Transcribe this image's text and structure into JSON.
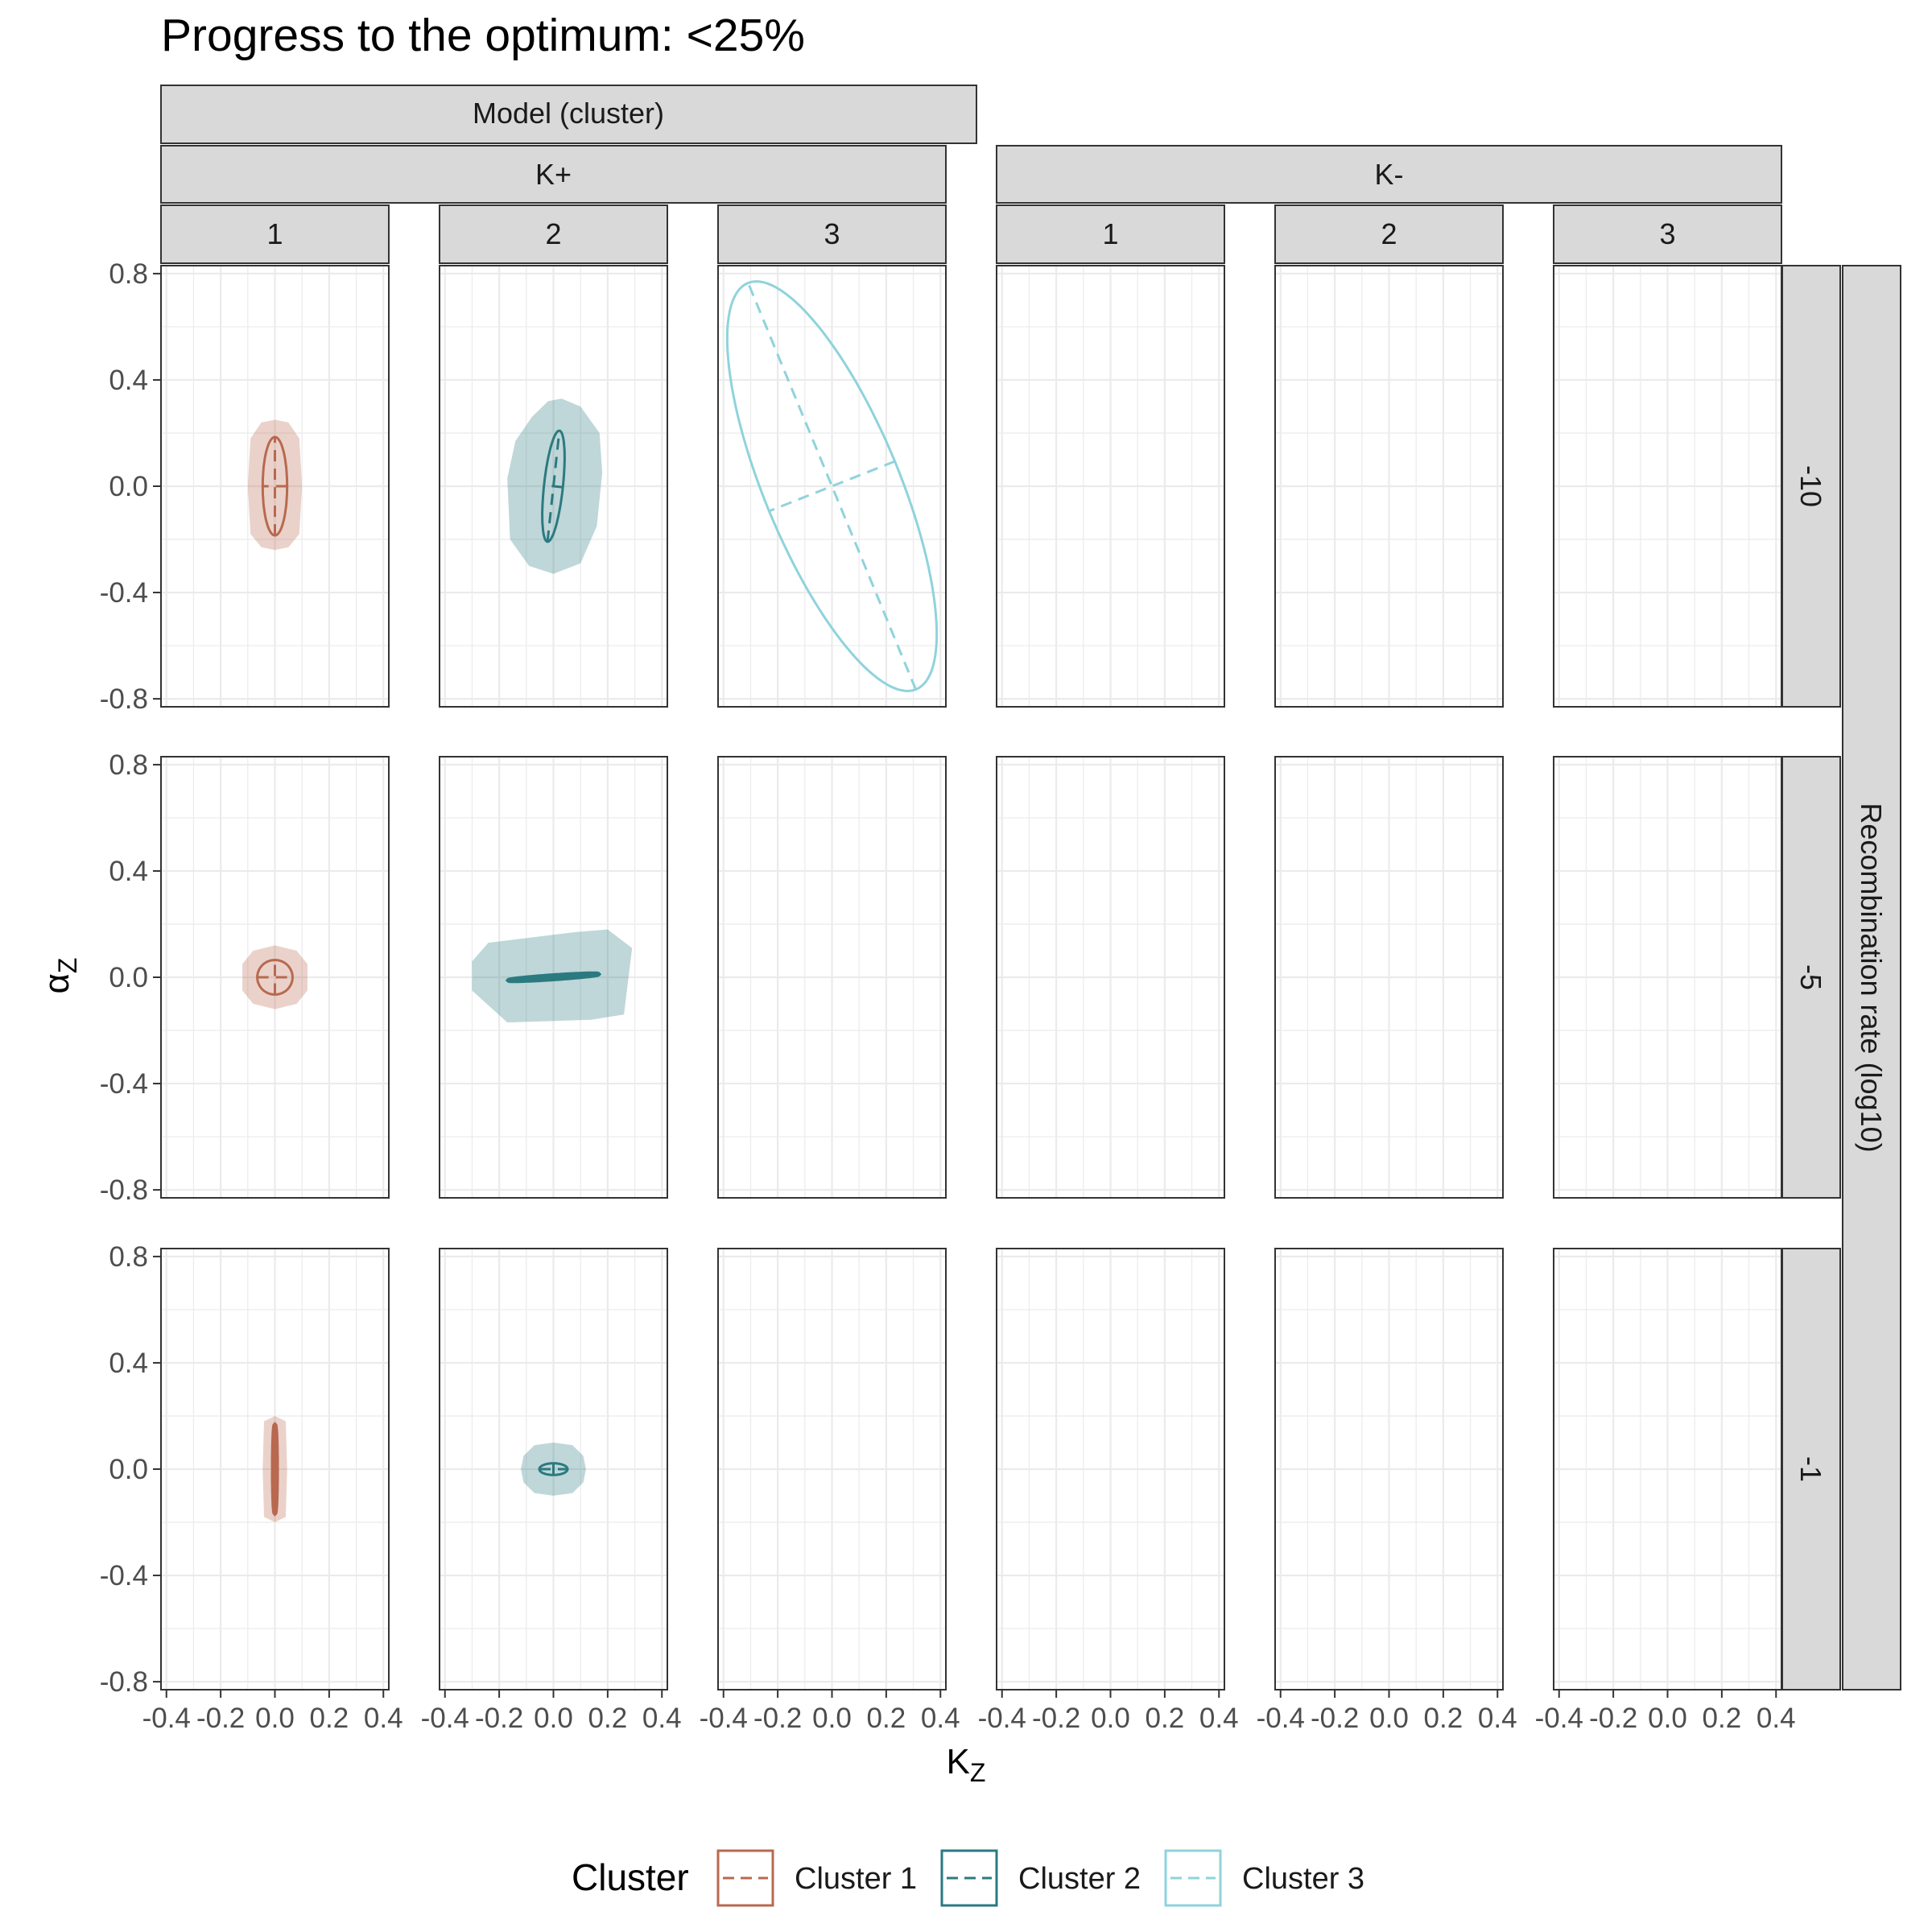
{
  "chart_data": {
    "type": "faceted-ellipse",
    "title": "Progress to the optimum: <25%",
    "xlabel": "K",
    "xlabel_sub": "Z",
    "ylabel": "α",
    "ylabel_sub": "Z",
    "xlim": [
      -0.42,
      0.42
    ],
    "ylim": [
      -0.83,
      0.83
    ],
    "x_ticks": [
      -0.4,
      -0.2,
      0.0,
      0.2,
      0.4
    ],
    "x_tick_labels": [
      "-0.4",
      "-0.2",
      "0.0",
      "0.2",
      "0.4"
    ],
    "y_ticks": [
      -0.8,
      -0.4,
      0.0,
      0.4,
      0.8
    ],
    "y_tick_labels": [
      "-0.8",
      "-0.4",
      "0.0",
      "0.4",
      "0.8"
    ],
    "grid": true,
    "top_strip_label": "Model (cluster)",
    "models": [
      "K+",
      "K-"
    ],
    "clusters": [
      "1",
      "2",
      "3"
    ],
    "right_strip_label": "Recombination rate (log10)",
    "rows": [
      "-10",
      "-5",
      "-1"
    ],
    "legend": {
      "title": "Cluster",
      "position": "bottom",
      "entries": [
        "Cluster 1",
        "Cluster 2",
        "Cluster 3"
      ]
    },
    "colors": {
      "Cluster 1": "#b8694f",
      "Cluster 2": "#2b7a80",
      "Cluster 3": "#8fd3dc"
    },
    "panels": [
      {
        "model": "K+",
        "cluster": "1",
        "row": "-10",
        "hull": [
          [
            -0.09,
            0.18
          ],
          [
            -0.05,
            0.24
          ],
          [
            0.0,
            0.25
          ],
          [
            0.05,
            0.24
          ],
          [
            0.09,
            0.18
          ],
          [
            0.1,
            0.0
          ],
          [
            0.09,
            -0.18
          ],
          [
            0.05,
            -0.23
          ],
          [
            0.0,
            -0.24
          ],
          [
            -0.05,
            -0.23
          ],
          [
            -0.09,
            -0.18
          ],
          [
            -0.1,
            0.0
          ]
        ],
        "ellipse": {
          "cx": 0.0,
          "cy": 0.0,
          "a": 0.185,
          "b": 0.045,
          "angle": 90
        }
      },
      {
        "model": "K+",
        "cluster": "2",
        "row": "-10",
        "hull": [
          [
            -0.08,
            0.26
          ],
          [
            -0.02,
            0.32
          ],
          [
            0.03,
            0.33
          ],
          [
            0.1,
            0.3
          ],
          [
            0.17,
            0.2
          ],
          [
            0.18,
            0.05
          ],
          [
            0.16,
            -0.15
          ],
          [
            0.1,
            -0.29
          ],
          [
            0.0,
            -0.33
          ],
          [
            -0.09,
            -0.3
          ],
          [
            -0.16,
            -0.2
          ],
          [
            -0.17,
            0.03
          ],
          [
            -0.14,
            0.17
          ]
        ],
        "ellipse": {
          "cx": 0.0,
          "cy": 0.0,
          "a": 0.21,
          "b": 0.035,
          "angle": 84
        }
      },
      {
        "model": "K+",
        "cluster": "3",
        "row": "-10",
        "ellipse": {
          "cx": 0.0,
          "cy": 0.0,
          "a": 0.825,
          "b": 0.25,
          "angle": 112
        }
      },
      {
        "model": "K+",
        "cluster": "1",
        "row": "-5",
        "hull": [
          [
            -0.12,
            0.05
          ],
          [
            -0.08,
            0.1
          ],
          [
            0.0,
            0.12
          ],
          [
            0.08,
            0.1
          ],
          [
            0.12,
            0.05
          ],
          [
            0.12,
            -0.05
          ],
          [
            0.08,
            -0.1
          ],
          [
            0.0,
            -0.12
          ],
          [
            -0.08,
            -0.1
          ],
          [
            -0.12,
            -0.05
          ]
        ],
        "ellipse": {
          "cx": 0.0,
          "cy": 0.0,
          "a": 0.065,
          "b": 0.065,
          "angle": 0
        }
      },
      {
        "model": "K+",
        "cluster": "2",
        "row": "-5",
        "hull": [
          [
            -0.3,
            0.06
          ],
          [
            -0.24,
            0.13
          ],
          [
            0.08,
            0.17
          ],
          [
            0.2,
            0.18
          ],
          [
            0.29,
            0.11
          ],
          [
            0.26,
            -0.14
          ],
          [
            0.14,
            -0.16
          ],
          [
            -0.17,
            -0.17
          ],
          [
            -0.3,
            -0.05
          ]
        ],
        "ellipse": {
          "cx": 0.0,
          "cy": 0.0,
          "a": 0.165,
          "b": 0.006,
          "angle": 4
        },
        "thick": true
      },
      {
        "model": "K+",
        "cluster": "1",
        "row": "-1",
        "hull": [
          [
            -0.04,
            0.18
          ],
          [
            0.0,
            0.2
          ],
          [
            0.04,
            0.18
          ],
          [
            0.045,
            0.0
          ],
          [
            0.04,
            -0.18
          ],
          [
            0.0,
            -0.2
          ],
          [
            -0.04,
            -0.18
          ],
          [
            -0.045,
            0.0
          ]
        ],
        "ellipse": {
          "cx": 0.0,
          "cy": 0.0,
          "a": 0.165,
          "b": 0.006,
          "angle": 90
        },
        "thick": true
      },
      {
        "model": "K+",
        "cluster": "2",
        "row": "-1",
        "hull": [
          [
            -0.11,
            0.05
          ],
          [
            -0.07,
            0.09
          ],
          [
            0.0,
            0.1
          ],
          [
            0.07,
            0.09
          ],
          [
            0.11,
            0.05
          ],
          [
            0.12,
            0.0
          ],
          [
            0.11,
            -0.05
          ],
          [
            0.07,
            -0.09
          ],
          [
            0.0,
            -0.1
          ],
          [
            -0.07,
            -0.09
          ],
          [
            -0.11,
            -0.05
          ],
          [
            -0.12,
            0.0
          ]
        ],
        "ellipse": {
          "cx": 0.0,
          "cy": 0.0,
          "a": 0.052,
          "b": 0.022,
          "angle": 0
        }
      }
    ]
  }
}
